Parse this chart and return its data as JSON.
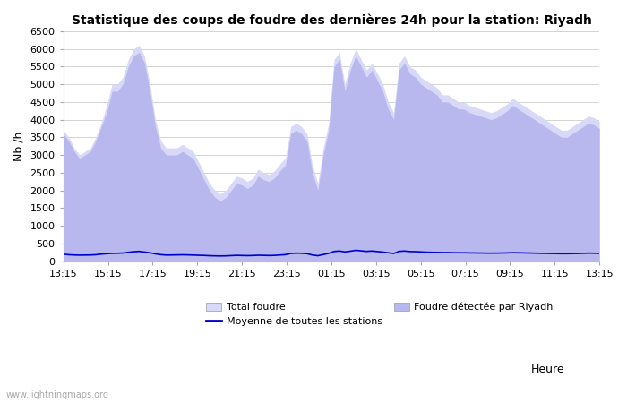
{
  "title": "Statistique des coups de foudre des dernières 24h pour la station: Riyadh",
  "xlabel": "Heure",
  "ylabel": "Nb /h",
  "x_ticks": [
    "13:15",
    "15:15",
    "17:15",
    "19:15",
    "21:15",
    "23:15",
    "01:15",
    "03:15",
    "05:15",
    "07:15",
    "09:15",
    "11:15",
    "13:15"
  ],
  "ylim": [
    0,
    6500
  ],
  "y_ticks": [
    0,
    500,
    1000,
    1500,
    2000,
    2500,
    3000,
    3500,
    4000,
    4500,
    5000,
    5500,
    6000,
    6500
  ],
  "bg_color": "#ffffff",
  "plot_bg_color": "#ffffff",
  "grid_color": "#cccccc",
  "fill_total_color": "#d8d8f8",
  "fill_riyadh_color": "#b8b8ee",
  "line_mean_color": "#0000cc",
  "watermark": "www.lightningmaps.org",
  "legend": [
    {
      "label": "Total foudre",
      "color": "#d8d8f8"
    },
    {
      "label": "Moyenne de toutes les stations",
      "color": "#0000cc"
    },
    {
      "label": "Foudre détectée par Riyadh",
      "color": "#b8b8ee"
    }
  ],
  "total_foudre": [
    3700,
    3500,
    3200,
    3000,
    3100,
    3200,
    3500,
    3900,
    4400,
    5000,
    5000,
    5200,
    5700,
    6000,
    6100,
    5800,
    5000,
    4000,
    3400,
    3200,
    3200,
    3200,
    3300,
    3200,
    3100,
    2800,
    2500,
    2200,
    2000,
    1900,
    2000,
    2200,
    2400,
    2350,
    2250,
    2350,
    2600,
    2500,
    2450,
    2550,
    2750,
    2900,
    3800,
    3900,
    3800,
    3600,
    2700,
    2200,
    3200,
    3900,
    5700,
    5900,
    5000,
    5600,
    6000,
    5700,
    5400,
    5600,
    5300,
    5000,
    4500,
    4200,
    5600,
    5800,
    5500,
    5400,
    5200,
    5100,
    5000,
    4900,
    4700,
    4700,
    4600,
    4500,
    4500,
    4400,
    4350,
    4300,
    4250,
    4200,
    4250,
    4350,
    4450,
    4600,
    4500,
    4400,
    4300,
    4200,
    4100,
    4000,
    3900,
    3800,
    3700,
    3700,
    3800,
    3900,
    4000,
    4100,
    4050,
    3950
  ],
  "riyadh_foudre": [
    3600,
    3400,
    3100,
    2900,
    3000,
    3100,
    3400,
    3800,
    4200,
    4800,
    4800,
    5000,
    5500,
    5800,
    5900,
    5600,
    4800,
    3800,
    3200,
    3000,
    3000,
    3000,
    3100,
    3000,
    2900,
    2600,
    2300,
    2000,
    1800,
    1700,
    1800,
    2000,
    2200,
    2150,
    2050,
    2150,
    2400,
    2300,
    2250,
    2350,
    2550,
    2700,
    3600,
    3700,
    3600,
    3400,
    2500,
    2000,
    3000,
    3700,
    5500,
    5700,
    4800,
    5400,
    5800,
    5500,
    5200,
    5400,
    5100,
    4800,
    4300,
    4000,
    5400,
    5600,
    5300,
    5200,
    5000,
    4900,
    4800,
    4700,
    4500,
    4500,
    4400,
    4300,
    4300,
    4200,
    4150,
    4100,
    4050,
    4000,
    4050,
    4150,
    4250,
    4400,
    4300,
    4200,
    4100,
    4000,
    3900,
    3800,
    3700,
    3600,
    3500,
    3500,
    3600,
    3700,
    3800,
    3900,
    3850,
    3750
  ],
  "mean_line": [
    195,
    180,
    172,
    168,
    170,
    172,
    180,
    198,
    210,
    218,
    222,
    228,
    248,
    265,
    275,
    255,
    235,
    205,
    182,
    170,
    172,
    175,
    178,
    175,
    170,
    165,
    160,
    152,
    148,
    145,
    148,
    155,
    162,
    158,
    155,
    158,
    165,
    162,
    158,
    162,
    172,
    182,
    215,
    225,
    220,
    210,
    172,
    152,
    185,
    218,
    272,
    285,
    260,
    280,
    305,
    290,
    275,
    285,
    270,
    255,
    235,
    215,
    275,
    285,
    270,
    268,
    260,
    252,
    248,
    245,
    242,
    242,
    238,
    235,
    235,
    232,
    230,
    228,
    226,
    224,
    226,
    228,
    232,
    238,
    235,
    232,
    228,
    225,
    220,
    218,
    215,
    212,
    210,
    210,
    212,
    215,
    220,
    225,
    222,
    218
  ]
}
